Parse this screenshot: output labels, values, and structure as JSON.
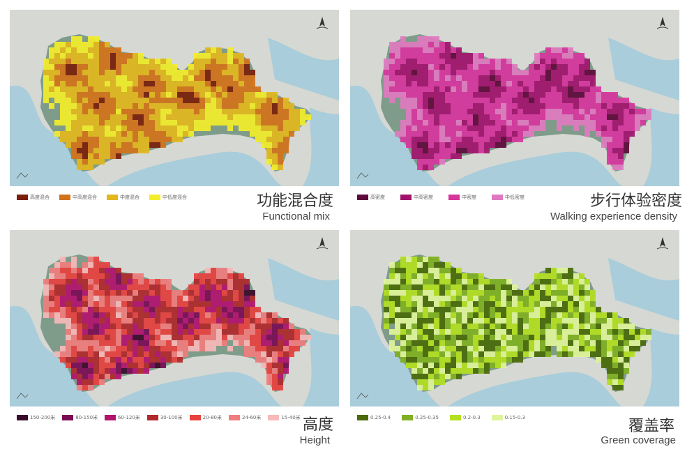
{
  "panels": [
    {
      "id": "functional-mix",
      "title_cn": "功能混合度",
      "title_en": "Functional mix",
      "legend": [
        {
          "label": "高度混合",
          "color": "#7a1f0b"
        },
        {
          "label": "中高度混合",
          "color": "#d2731a"
        },
        {
          "label": "中度混合",
          "color": "#e2b71d"
        },
        {
          "label": "中低度混合",
          "color": "#f3ee2b"
        }
      ]
    },
    {
      "id": "walking-density",
      "title_cn": "步行体验密度",
      "title_en": "Walking experience density",
      "legend": [
        {
          "label": "高密度",
          "color": "#5e0a3a"
        },
        {
          "label": "中高密度",
          "color": "#a2136c"
        },
        {
          "label": "中密度",
          "color": "#d8359d"
        },
        {
          "label": "中低密度",
          "color": "#e07ac0"
        }
      ]
    },
    {
      "id": "height",
      "title_cn": "高度",
      "title_en": "Height",
      "legend": [
        {
          "label": "150-200米",
          "color": "#3a0a2a"
        },
        {
          "label": "80-150米",
          "color": "#7a0c55"
        },
        {
          "label": "60-120米",
          "color": "#b3126e"
        },
        {
          "label": "30-100米",
          "color": "#b0282a"
        },
        {
          "label": "20-80米",
          "color": "#e8413f"
        },
        {
          "label": "24-60米",
          "color": "#f07d7d"
        },
        {
          "label": "15-40米",
          "color": "#f7b9b9"
        }
      ]
    },
    {
      "id": "green-coverage",
      "title_cn": "覆盖率",
      "title_en": "Green coverage",
      "legend": [
        {
          "label": "0.25-0.4",
          "color": "#4a6a0a"
        },
        {
          "label": "0.25-0.35",
          "color": "#7fb021"
        },
        {
          "label": "0.2-0.3",
          "color": "#b3e01f"
        },
        {
          "label": "0.15-0.3",
          "color": "#dff59a"
        }
      ]
    }
  ],
  "colors": {
    "sea": "#a9cdda",
    "land": "#d6d8d3",
    "terrain": "#c7cbc4",
    "city_base": "#7f9c8a",
    "water": "#5f8ea8"
  }
}
